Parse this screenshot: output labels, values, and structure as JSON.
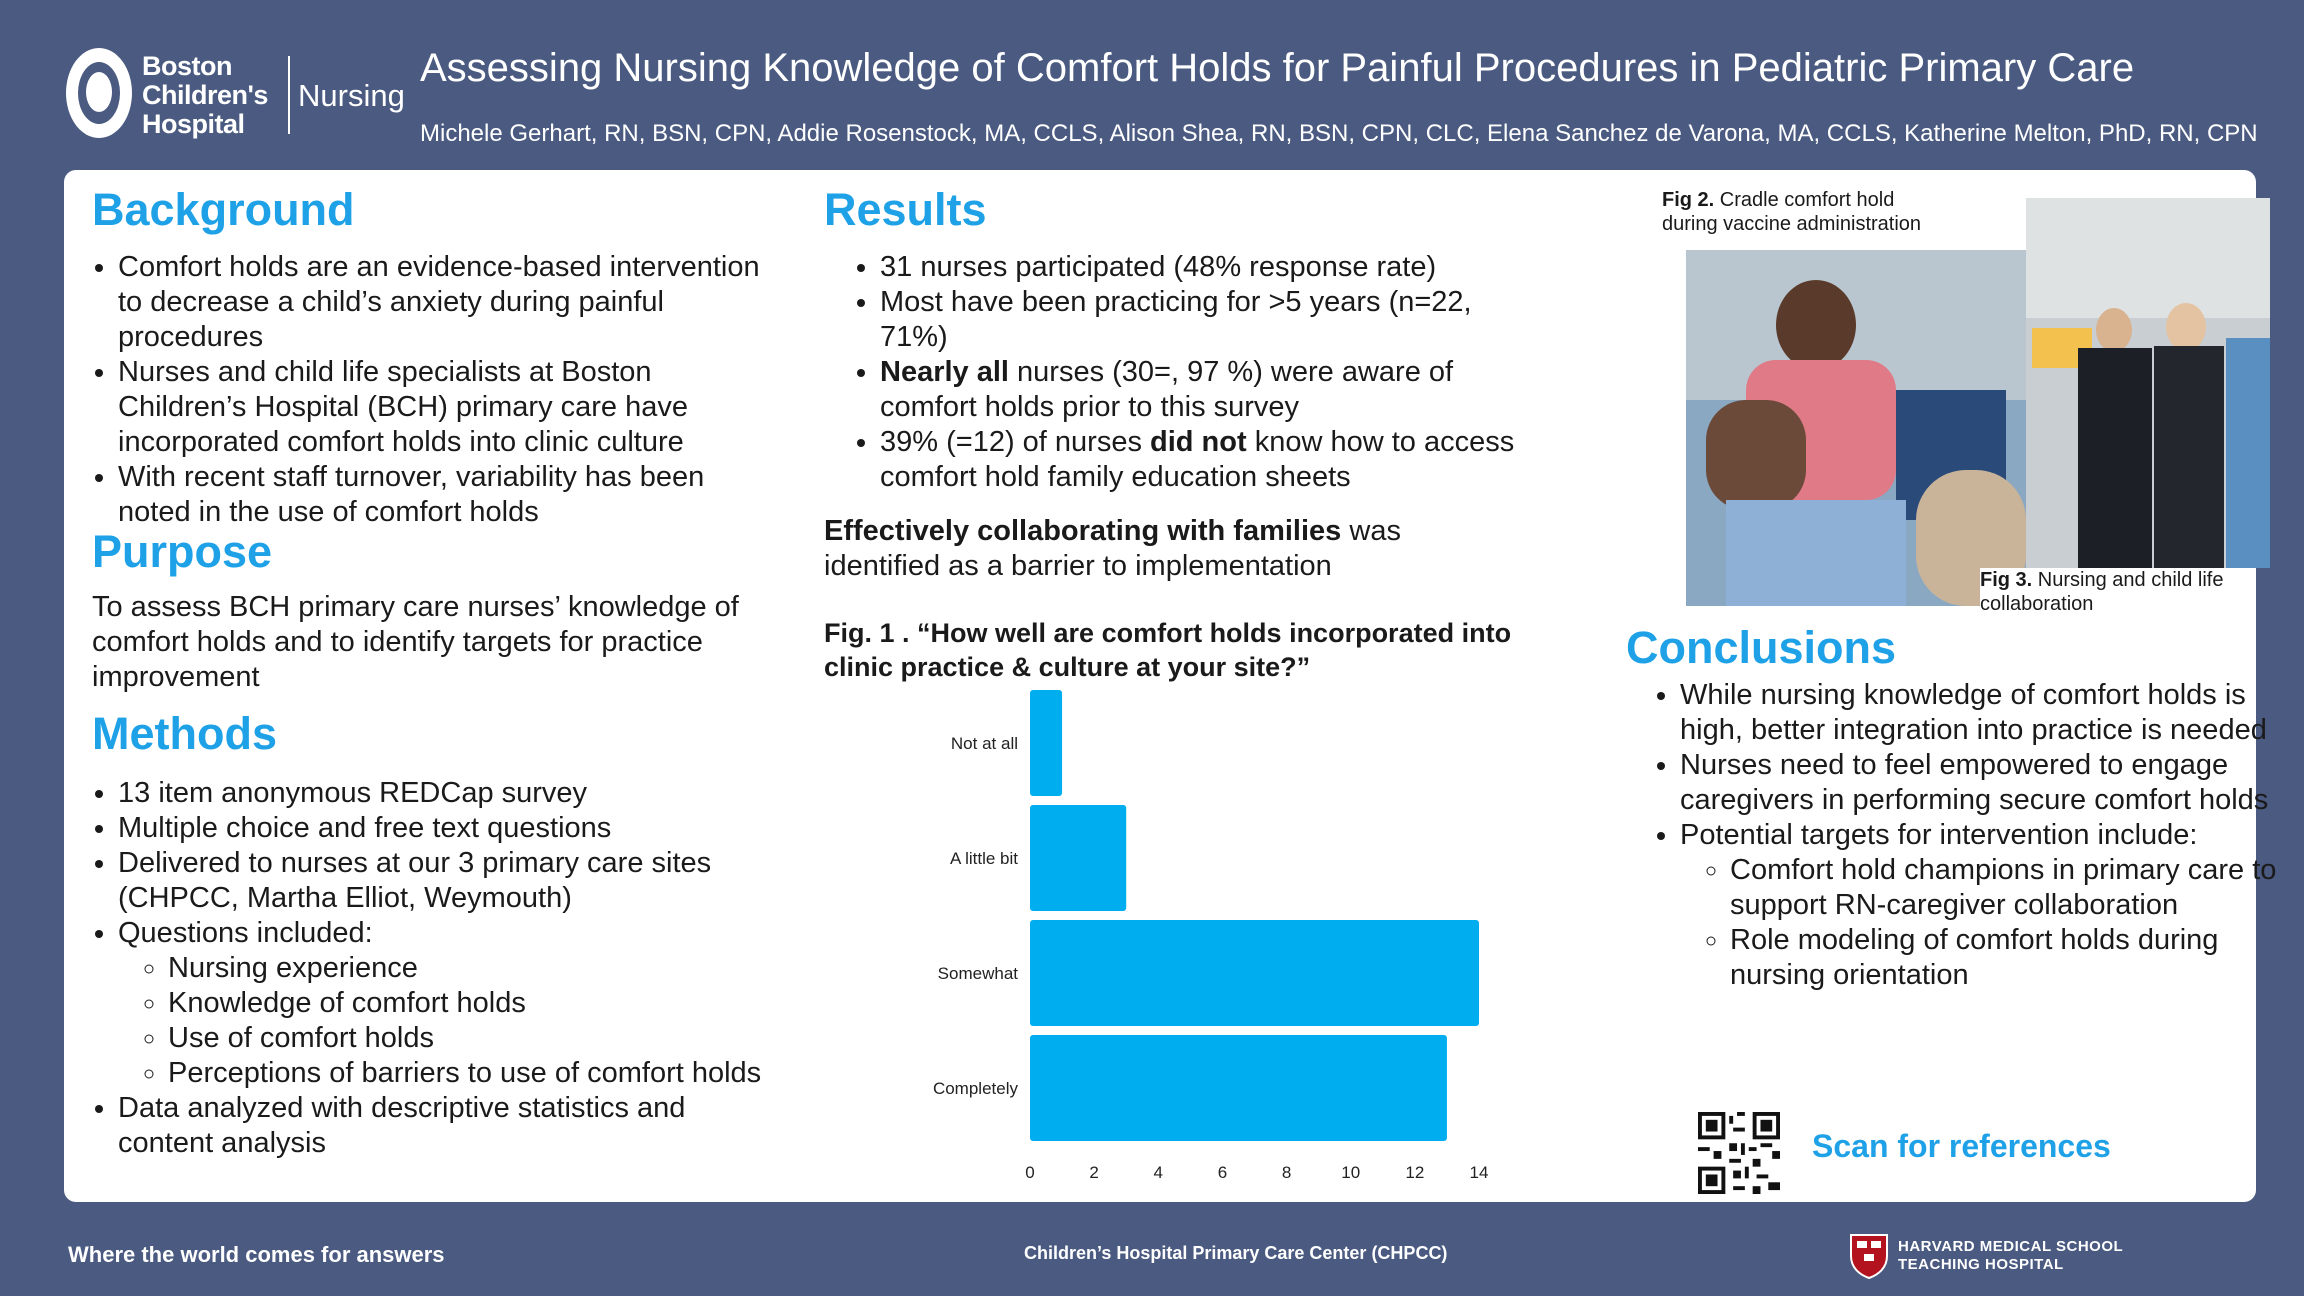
{
  "header": {
    "logo": {
      "name_line1": "Boston",
      "name_line2": "Children's",
      "name_line3": "Hospital",
      "division": "Nursing"
    },
    "title": "Assessing Nursing Knowledge of Comfort Holds for Painful Procedures in Pediatric Primary Care",
    "authors": "Michele Gerhart, RN, BSN, CPN, Addie Rosenstock, MA, CCLS, Alison Shea, RN, BSN, CPN, CLC, Elena Sanchez de Varona, MA, CCLS, Katherine Melton, PhD, RN, CPN"
  },
  "background": {
    "heading": "Background",
    "bullets": [
      "Comfort holds are an evidence-based intervention to decrease a child’s anxiety during painful procedures",
      "Nurses and child life specialists at Boston Children’s Hospital (BCH) primary care have incorporated comfort holds into clinic culture",
      "With recent staff turnover, variability has been noted in the use of comfort holds"
    ]
  },
  "purpose": {
    "heading": "Purpose",
    "text": "To assess BCH primary care nurses’ knowledge of comfort holds and to identify targets for practice improvement"
  },
  "methods": {
    "heading": "Methods",
    "bullets": [
      "13 item anonymous REDCap survey",
      "Multiple choice and free text questions",
      "Delivered to nurses at our 3 primary care sites (CHPCC, Martha Elliot, Weymouth)",
      "Questions included:"
    ],
    "sub_bullets": [
      "Nursing experience",
      "Knowledge of comfort holds",
      "Use of comfort holds",
      "Perceptions of barriers to use of comfort holds"
    ],
    "last_bullet": "Data analyzed with descriptive statistics and content analysis"
  },
  "results": {
    "heading": "Results",
    "b1": "31 nurses participated (48% response rate)",
    "b2": "Most have been practicing for >5 years (n=22, 71%)",
    "b3_bold": "Nearly all",
    "b3_rest": " nurses (30=, 97 %) were aware of comfort holds prior to this survey",
    "b4_pre": "39% (=12) of nurses ",
    "b4_bold": "did not",
    "b4_post": " know how to access comfort hold family education sheets",
    "barrier_bold": "Effectively collaborating with families",
    "barrier_rest": " was identified as a barrier to implementation",
    "fig1_caption": "Fig. 1 . “How well are comfort holds incorporated into clinic practice & culture at your site?”"
  },
  "figures": {
    "fig2_label": "Fig 2.",
    "fig2_text": " Cradle comfort hold during vaccine administration",
    "fig3_label": "Fig 3.",
    "fig3_text": " Nursing and child life collaboration"
  },
  "conclusions": {
    "heading": "Conclusions",
    "bullets": [
      "While nursing knowledge of comfort holds is high, better integration into practice is needed",
      "Nurses need to feel empowered  to engage caregivers in performing secure comfort holds",
      "Potential targets for intervention include:"
    ],
    "sub_bullets": [
      "Comfort hold champions in primary care to support RN-caregiver collaboration",
      "Role modeling of comfort holds during nursing orientation"
    ],
    "scan_text": "Scan for references"
  },
  "footer": {
    "tagline": "Where the world comes for answers",
    "center": "Children’s Hospital Primary Care Center (CHPCC)",
    "hms_line1": "HARVARD MEDICAL SCHOOL",
    "hms_line2": "TEACHING HOSPITAL"
  },
  "colors": {
    "accent": "#1ea1e6",
    "bar": "#00adef",
    "banner": "#4a5a80"
  },
  "chart_data": {
    "type": "bar",
    "orientation": "horizontal",
    "categories": [
      "Not at all",
      "A little bit",
      "Somewhat",
      "Completely"
    ],
    "values": [
      1,
      3,
      14,
      13
    ],
    "xlim": [
      0,
      14
    ],
    "xticks": [
      "0",
      "2",
      "4",
      "6",
      "8",
      "10",
      "12",
      "14"
    ],
    "xlabel": "",
    "ylabel": "",
    "grid": false
  }
}
